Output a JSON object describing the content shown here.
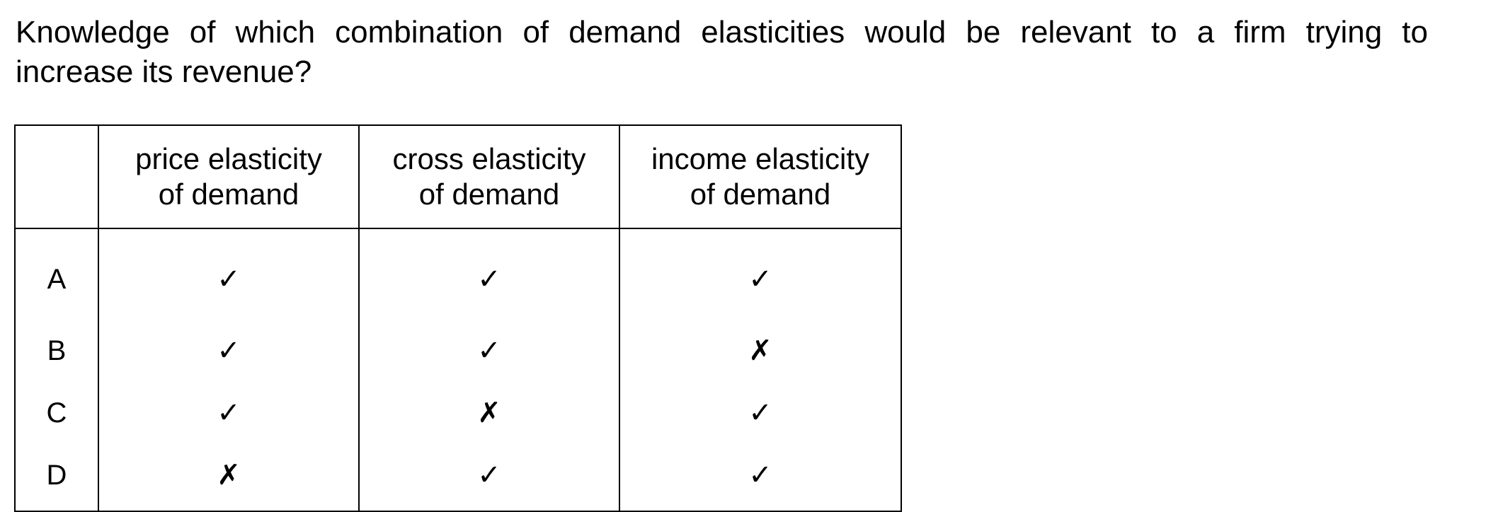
{
  "question": {
    "line1": "Knowledge of which combination of demand elasticities would be relevant to a firm trying to",
    "line2": "increase its revenue?"
  },
  "table": {
    "headers": {
      "key": "",
      "price": [
        "price elasticity",
        "of demand"
      ],
      "cross": [
        "cross elasticity",
        "of demand"
      ],
      "income": [
        "income elasticity",
        "of demand"
      ]
    },
    "rows": [
      {
        "key": "A",
        "price": "✓",
        "cross": "✓",
        "income": "✓"
      },
      {
        "key": "B",
        "price": "✓",
        "cross": "✓",
        "income": "✗"
      },
      {
        "key": "C",
        "price": "✓",
        "cross": "✗",
        "income": "✓"
      },
      {
        "key": "D",
        "price": "✗",
        "cross": "✓",
        "income": "✓"
      }
    ]
  }
}
